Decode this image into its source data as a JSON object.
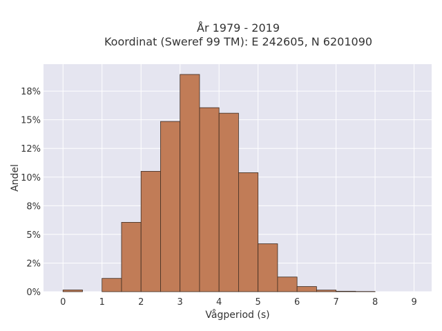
{
  "chart_data": {
    "type": "bar",
    "title_line1": "År 1979 - 2019",
    "title_line2": "Koordinat (Sweref 99 TM): E 242605, N 6201090",
    "xlabel": "Vågperiod (s)",
    "ylabel": "Andel",
    "xlim": [
      -0.5,
      9.45
    ],
    "ylim": [
      0,
      0.1985
    ],
    "x_ticks": [
      0,
      1,
      2,
      3,
      4,
      5,
      6,
      7,
      8,
      9
    ],
    "y_ticks": [
      {
        "value": 0.0,
        "label": "0%"
      },
      {
        "value": 0.025,
        "label": "2%"
      },
      {
        "value": 0.05,
        "label": "5%"
      },
      {
        "value": 0.075,
        "label": "8%"
      },
      {
        "value": 0.1,
        "label": "10%"
      },
      {
        "value": 0.125,
        "label": "12%"
      },
      {
        "value": 0.15,
        "label": "15%"
      },
      {
        "value": 0.175,
        "label": "18%"
      }
    ],
    "bin_width": 0.5,
    "bins": [
      {
        "start": 0.0,
        "value": 0.0015
      },
      {
        "start": 0.5,
        "value": 0.0
      },
      {
        "start": 1.0,
        "value": 0.0116
      },
      {
        "start": 1.5,
        "value": 0.0605
      },
      {
        "start": 2.0,
        "value": 0.105
      },
      {
        "start": 2.5,
        "value": 0.1485
      },
      {
        "start": 3.0,
        "value": 0.1895
      },
      {
        "start": 3.5,
        "value": 0.1605
      },
      {
        "start": 4.0,
        "value": 0.1557
      },
      {
        "start": 4.5,
        "value": 0.1038
      },
      {
        "start": 5.0,
        "value": 0.0418
      },
      {
        "start": 5.5,
        "value": 0.0128
      },
      {
        "start": 6.0,
        "value": 0.0045
      },
      {
        "start": 6.5,
        "value": 0.0014
      },
      {
        "start": 7.0,
        "value": 0.0004
      },
      {
        "start": 7.5,
        "value": 0.0002
      },
      {
        "start": 8.0,
        "value": 0.0
      },
      {
        "start": 8.5,
        "value": 0.0
      }
    ],
    "colors": {
      "bar_fill": "#c17c57",
      "bar_stroke": "#3b2a20",
      "plot_bg": "#e5e5f0",
      "grid": "#ffffff"
    },
    "grid": true,
    "legend": false
  }
}
